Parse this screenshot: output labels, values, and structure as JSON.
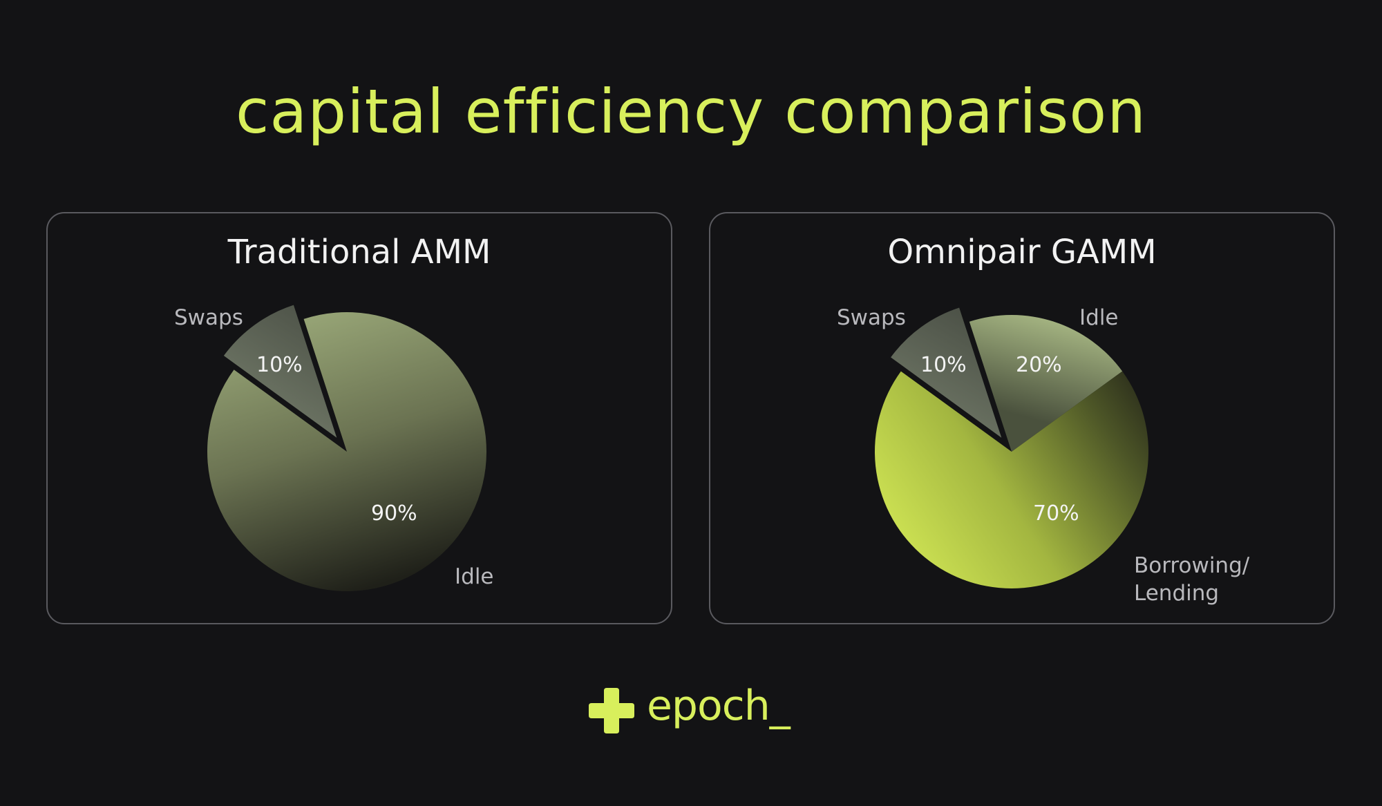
{
  "title": "capital efficiency comparison",
  "brand": {
    "name": "epoch_",
    "icon": "plus-cross-icon",
    "color": "#d8ef5c"
  },
  "colors": {
    "background": "#131315",
    "accent": "#d8ef5c",
    "panel_border": "#5a5a5f"
  },
  "chart_data": [
    {
      "type": "pie",
      "title": "Traditional AMM",
      "slices": [
        {
          "label": "Swaps",
          "value": 10,
          "value_label": "10%",
          "exploded": true,
          "color": "#5c6157"
        },
        {
          "label": "Idle",
          "value": 90,
          "value_label": "90%",
          "exploded": false,
          "color": "#8e9a6a"
        }
      ]
    },
    {
      "type": "pie",
      "title": "Omnipair GAMM",
      "slices": [
        {
          "label": "Swaps",
          "value": 10,
          "value_label": "10%",
          "exploded": true,
          "color": "#5c6157"
        },
        {
          "label": "Idle",
          "value": 20,
          "value_label": "20%",
          "exploded": false,
          "color": "#9aa67a"
        },
        {
          "label": "Borrowing/\nLending",
          "value": 70,
          "value_label": "70%",
          "exploded": false,
          "color": "#d4ec58"
        }
      ]
    }
  ]
}
